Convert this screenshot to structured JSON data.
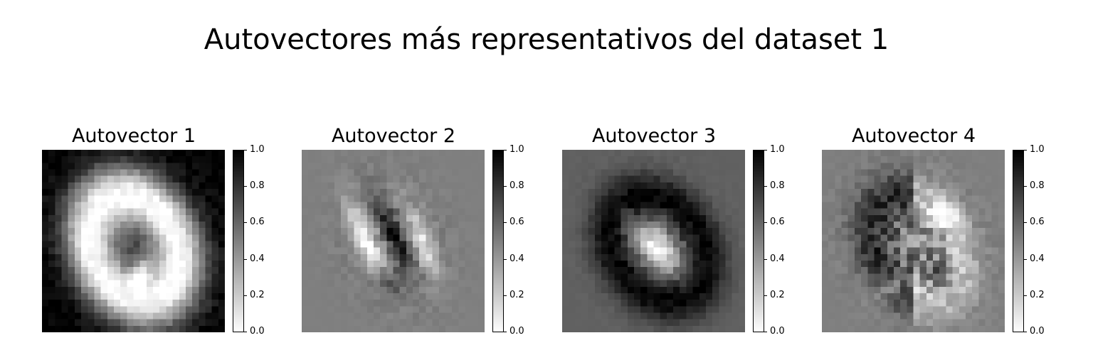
{
  "chart_data": {
    "type": "heatmap",
    "title": "Autovectores más representativos del dataset 1",
    "colormap": "gray_r",
    "grid": false,
    "colorbar": {
      "min": 0.0,
      "max": 1.0,
      "ticks": [
        "0.0",
        "0.2",
        "0.4",
        "0.6",
        "0.8",
        "1.0"
      ]
    },
    "panels": [
      {
        "title": "Autovector 1",
        "background": 1.0,
        "pattern": "bright-ring"
      },
      {
        "title": "Autovector 2",
        "background": 0.5,
        "pattern": "twin-strokes"
      },
      {
        "title": "Autovector 3",
        "background": 0.62,
        "pattern": "dark-ring-bright-core"
      },
      {
        "title": "Autovector 4",
        "background": 0.5,
        "pattern": "textured-loop"
      }
    ]
  }
}
